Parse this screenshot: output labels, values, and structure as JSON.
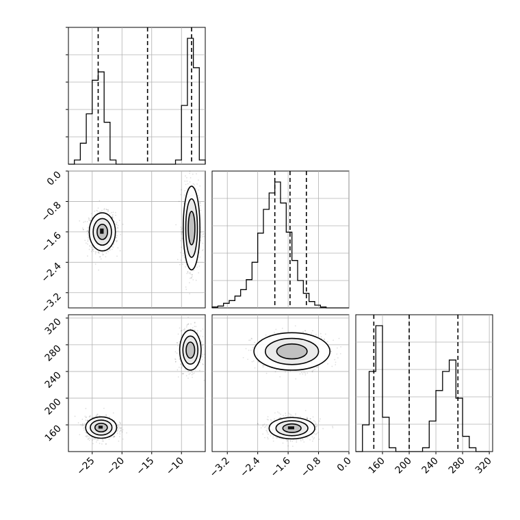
{
  "chart_data": {
    "type": "corner",
    "parameters": [
      "",
      "",
      ""
    ],
    "title": "",
    "grid": true,
    "quantile_lines": {
      "p0": [
        -24.0,
        -15.7,
        -8.3
      ],
      "p1": [
        -1.95,
        -1.55,
        -1.12
      ],
      "p2": [
        147,
        200,
        273
      ]
    },
    "axes": {
      "p0": {
        "range": [
          -29,
          -6
        ],
        "ticks": [
          -25,
          -20,
          -15,
          -10
        ],
        "tick_labels": [
          "−25",
          "−20",
          "−15",
          "−10"
        ]
      },
      "p1": {
        "range": [
          -3.6,
          0.0
        ],
        "ticks": [
          -3.2,
          -2.4,
          -1.6,
          -0.8,
          0.0
        ],
        "tick_labels": [
          "−3.2",
          "−2.4",
          "−1.6",
          "−0.8",
          "0.0"
        ]
      },
      "p2": {
        "range": [
          120,
          325
        ],
        "ticks": [
          160,
          200,
          240,
          280,
          320
        ],
        "tick_labels": [
          "160",
          "200",
          "240",
          "280",
          "320"
        ]
      }
    },
    "histograms": [
      {
        "param": "p0",
        "bin_edges": [
          -29,
          -28,
          -27,
          -26,
          -25,
          -24,
          -23,
          -22,
          -21,
          -20,
          -19,
          -18,
          -17,
          -16,
          -15,
          -14,
          -13,
          -12,
          -11,
          -10,
          -9,
          -8,
          -7,
          -6
        ],
        "counts": [
          0,
          1,
          5,
          12,
          20,
          22,
          10,
          1,
          0,
          0,
          0,
          0,
          0,
          0,
          0,
          0,
          0,
          0,
          1,
          14,
          30,
          23,
          1
        ]
      },
      {
        "param": "p1",
        "bin_edges": [
          -3.6,
          -3.45,
          -3.3,
          -3.15,
          -3.0,
          -2.85,
          -2.7,
          -2.55,
          -2.4,
          -2.25,
          -2.1,
          -1.95,
          -1.8,
          -1.65,
          -1.5,
          -1.35,
          -1.2,
          -1.05,
          -0.9,
          -0.75,
          -0.6,
          -0.45,
          -0.3,
          -0.15,
          0.0
        ],
        "counts": [
          1,
          2,
          5,
          8,
          13,
          20,
          31,
          50,
          82,
          108,
          126,
          138,
          115,
          83,
          52,
          30,
          16,
          7,
          3,
          1,
          0,
          0,
          0,
          0
        ]
      },
      {
        "param": "p2",
        "bin_edges": [
          120,
          130,
          140,
          150,
          160,
          170,
          180,
          190,
          200,
          210,
          220,
          230,
          240,
          250,
          260,
          270,
          280,
          290,
          300,
          310,
          320
        ],
        "counts": [
          0,
          7,
          21,
          33,
          9,
          1,
          0,
          0,
          0,
          0,
          1,
          8,
          16,
          21,
          24,
          14,
          4,
          1,
          0,
          0
        ]
      }
    ],
    "pair_plots": [
      {
        "x": "p0",
        "y": "p1",
        "modes": [
          {
            "center": [
              -23.3,
              -1.6
            ],
            "spread": [
              1.1,
              0.25
            ],
            "density": 1.0
          },
          {
            "center": [
              -8.3,
              -1.5
            ],
            "spread": [
              0.7,
              0.55
            ],
            "density": 0.55
          }
        ]
      },
      {
        "x": "p0",
        "y": "p2",
        "modes": [
          {
            "center": [
              -23.5,
              156
            ],
            "spread": [
              1.3,
              8
            ],
            "density": 1.0
          },
          {
            "center": [
              -8.5,
              272
            ],
            "spread": [
              0.9,
              15
            ],
            "density": 0.6
          }
        ]
      },
      {
        "x": "p1",
        "y": "p2",
        "modes": [
          {
            "center": [
              -1.5,
              270
            ],
            "spread": [
              0.5,
              14
            ],
            "density": 0.35
          },
          {
            "center": [
              -1.5,
              155
            ],
            "spread": [
              0.3,
              8
            ],
            "density": 1.0
          }
        ]
      }
    ]
  }
}
